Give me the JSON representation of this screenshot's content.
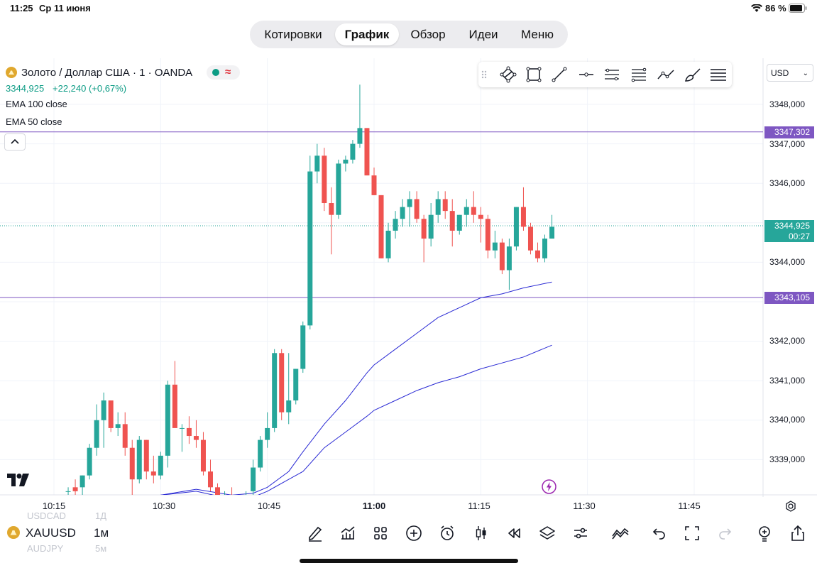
{
  "status_bar": {
    "time": "11:25",
    "date": "Ср 11 июня",
    "battery": "86 %"
  },
  "nav": {
    "tabs": [
      "Котировки",
      "График",
      "Обзор",
      "Идеи",
      "Меню"
    ],
    "active": "График"
  },
  "legend": {
    "symbol_title": "Золото / Доллар США · 1 · OANDA",
    "price": "3344,925",
    "change": "+22,240 (+0,67%)",
    "ema100": "EMA 100 close",
    "ema50": "EMA 50 close"
  },
  "currency_select": "USD",
  "price_axis": {
    "labels": [
      "3348,000",
      "3347,000",
      "3346,000",
      "3344,000",
      "3342,000",
      "3341,000",
      "3340,000",
      "3339,000"
    ],
    "line_upper": "3347,302",
    "line_lower": "3343,105",
    "current_price": "3344,925",
    "countdown": "00:27"
  },
  "time_axis": {
    "labels": [
      "10:15",
      "10:30",
      "10:45",
      "11:00",
      "11:15",
      "11:30",
      "11:45"
    ]
  },
  "bottom_bar": {
    "symbol": "XAUUSD",
    "interval": "1м",
    "ghost_above_symbol": "USDCAD",
    "ghost_above_interval": "1Д",
    "ghost_below_symbol": "AUDJPY",
    "ghost_below_interval": "5м"
  },
  "colors": {
    "up": "#26a69a",
    "down": "#ef5350",
    "line": "#7e57c2",
    "ema": "#2a2ad4",
    "price_tag": "#26a69a"
  },
  "chart_data": {
    "type": "candlestick",
    "title": "Золото / Доллар США · 1 · OANDA",
    "interval": "1",
    "x_labels": [
      "10:15",
      "10:30",
      "10:45",
      "11:00",
      "11:15",
      "11:30",
      "11:45"
    ],
    "ylim": [
      3338.1,
      3348.9
    ],
    "candles": [
      {
        "t": "10:17",
        "o": 3338.2,
        "h": 3338.3,
        "l": 3338.0,
        "c": 3338.2
      },
      {
        "t": "10:18",
        "o": 3338.3,
        "h": 3338.5,
        "l": 3337.9,
        "c": 3338.2
      },
      {
        "t": "10:19",
        "o": 3338.3,
        "h": 3338.6,
        "l": 3338.1,
        "c": 3338.6
      },
      {
        "t": "10:20",
        "o": 3338.6,
        "h": 3339.4,
        "l": 3338.5,
        "c": 3339.3
      },
      {
        "t": "10:21",
        "o": 3339.3,
        "h": 3340.4,
        "l": 3339.1,
        "c": 3340.0
      },
      {
        "t": "10:22",
        "o": 3340.0,
        "h": 3340.7,
        "l": 3339.3,
        "c": 3340.5
      },
      {
        "t": "10:23",
        "o": 3340.5,
        "h": 3340.5,
        "l": 3339.7,
        "c": 3339.8
      },
      {
        "t": "10:24",
        "o": 3339.8,
        "h": 3340.2,
        "l": 3339.6,
        "c": 3339.9
      },
      {
        "t": "10:25",
        "o": 3339.9,
        "h": 3340.2,
        "l": 3339.1,
        "c": 3339.3
      },
      {
        "t": "10:26",
        "o": 3339.3,
        "h": 3339.5,
        "l": 3338.1,
        "c": 3338.5
      },
      {
        "t": "10:27",
        "o": 3338.5,
        "h": 3339.6,
        "l": 3338.4,
        "c": 3339.5
      },
      {
        "t": "10:28",
        "o": 3339.5,
        "h": 3339.5,
        "l": 3338.5,
        "c": 3338.7
      },
      {
        "t": "10:29",
        "o": 3338.7,
        "h": 3339.1,
        "l": 3338.4,
        "c": 3338.6
      },
      {
        "t": "10:30",
        "o": 3338.6,
        "h": 3339.2,
        "l": 3338.5,
        "c": 3339.1
      },
      {
        "t": "10:31",
        "o": 3339.1,
        "h": 3341.0,
        "l": 3338.8,
        "c": 3340.9
      },
      {
        "t": "10:32",
        "o": 3340.9,
        "h": 3341.5,
        "l": 3339.9,
        "c": 3339.8
      },
      {
        "t": "10:33",
        "o": 3339.8,
        "h": 3339.9,
        "l": 3339.2,
        "c": 3339.8
      },
      {
        "t": "10:34",
        "o": 3339.8,
        "h": 3340.1,
        "l": 3339.4,
        "c": 3339.6
      },
      {
        "t": "10:35",
        "o": 3339.6,
        "h": 3340.0,
        "l": 3339.3,
        "c": 3339.5
      },
      {
        "t": "10:36",
        "o": 3339.5,
        "h": 3339.7,
        "l": 3338.6,
        "c": 3338.7
      },
      {
        "t": "10:37",
        "o": 3338.7,
        "h": 3339.0,
        "l": 3338.2,
        "c": 3338.3
      },
      {
        "t": "10:38",
        "o": 3338.3,
        "h": 3338.4,
        "l": 3337.9,
        "c": 3338.1
      },
      {
        "t": "10:39",
        "o": 3338.1,
        "h": 3338.2,
        "l": 3337.9,
        "c": 3338.1
      },
      {
        "t": "10:40",
        "o": 3338.1,
        "h": 3338.3,
        "l": 3337.9,
        "c": 3338.0
      },
      {
        "t": "10:41",
        "o": 3338.0,
        "h": 3338.1,
        "l": 3337.9,
        "c": 3338.0
      },
      {
        "t": "10:42",
        "o": 3338.0,
        "h": 3338.2,
        "l": 3337.9,
        "c": 3338.1
      },
      {
        "t": "10:43",
        "o": 3338.2,
        "h": 3339.0,
        "l": 3338.1,
        "c": 3338.8
      },
      {
        "t": "10:44",
        "o": 3338.8,
        "h": 3339.6,
        "l": 3338.7,
        "c": 3339.5
      },
      {
        "t": "10:45",
        "o": 3339.5,
        "h": 3340.2,
        "l": 3339.3,
        "c": 3339.8
      },
      {
        "t": "10:46",
        "o": 3339.8,
        "h": 3341.8,
        "l": 3339.7,
        "c": 3341.7
      },
      {
        "t": "10:47",
        "o": 3341.7,
        "h": 3341.8,
        "l": 3340.0,
        "c": 3340.2
      },
      {
        "t": "10:48",
        "o": 3340.2,
        "h": 3341.7,
        "l": 3339.9,
        "c": 3340.5
      },
      {
        "t": "10:49",
        "o": 3340.5,
        "h": 3341.3,
        "l": 3340.4,
        "c": 3341.3
      },
      {
        "t": "10:50",
        "o": 3341.3,
        "h": 3342.5,
        "l": 3341.2,
        "c": 3342.4
      },
      {
        "t": "10:51",
        "o": 3342.4,
        "h": 3346.7,
        "l": 3342.3,
        "c": 3346.3
      },
      {
        "t": "10:52",
        "o": 3346.3,
        "h": 3347.0,
        "l": 3346.0,
        "c": 3346.7
      },
      {
        "t": "10:53",
        "o": 3346.7,
        "h": 3346.9,
        "l": 3345.3,
        "c": 3345.5
      },
      {
        "t": "10:54",
        "o": 3345.5,
        "h": 3345.9,
        "l": 3344.2,
        "c": 3345.2
      },
      {
        "t": "10:55",
        "o": 3345.2,
        "h": 3346.6,
        "l": 3345.1,
        "c": 3346.5
      },
      {
        "t": "10:56",
        "o": 3346.5,
        "h": 3346.7,
        "l": 3346.3,
        "c": 3346.6
      },
      {
        "t": "10:57",
        "o": 3346.6,
        "h": 3347.1,
        "l": 3346.5,
        "c": 3347.0
      },
      {
        "t": "10:58",
        "o": 3347.0,
        "h": 3348.5,
        "l": 3346.9,
        "c": 3347.4
      },
      {
        "t": "10:59",
        "o": 3347.4,
        "h": 3347.4,
        "l": 3346.2,
        "c": 3346.2
      },
      {
        "t": "11:00",
        "o": 3346.2,
        "h": 3346.4,
        "l": 3345.7,
        "c": 3345.7
      },
      {
        "t": "11:01",
        "o": 3345.7,
        "h": 3345.7,
        "l": 3344.1,
        "c": 3344.1
      },
      {
        "t": "11:02",
        "o": 3344.1,
        "h": 3345.0,
        "l": 3344.0,
        "c": 3344.8
      },
      {
        "t": "11:03",
        "o": 3344.8,
        "h": 3345.3,
        "l": 3344.6,
        "c": 3345.1
      },
      {
        "t": "11:04",
        "o": 3345.1,
        "h": 3345.6,
        "l": 3344.9,
        "c": 3345.4
      },
      {
        "t": "11:05",
        "o": 3345.4,
        "h": 3345.8,
        "l": 3344.9,
        "c": 3345.6
      },
      {
        "t": "11:06",
        "o": 3345.6,
        "h": 3345.8,
        "l": 3345.0,
        "c": 3345.1
      },
      {
        "t": "11:07",
        "o": 3345.1,
        "h": 3345.2,
        "l": 3344.0,
        "c": 3344.6
      },
      {
        "t": "11:08",
        "o": 3344.6,
        "h": 3345.5,
        "l": 3344.4,
        "c": 3345.2
      },
      {
        "t": "11:09",
        "o": 3345.2,
        "h": 3345.8,
        "l": 3345.0,
        "c": 3345.6
      },
      {
        "t": "11:10",
        "o": 3345.6,
        "h": 3345.8,
        "l": 3345.1,
        "c": 3345.3
      },
      {
        "t": "11:11",
        "o": 3345.3,
        "h": 3345.6,
        "l": 3344.4,
        "c": 3344.8
      },
      {
        "t": "11:12",
        "o": 3344.8,
        "h": 3345.2,
        "l": 3344.7,
        "c": 3345.2
      },
      {
        "t": "11:13",
        "o": 3345.2,
        "h": 3345.6,
        "l": 3344.9,
        "c": 3345.4
      },
      {
        "t": "11:14",
        "o": 3345.4,
        "h": 3345.8,
        "l": 3345.0,
        "c": 3345.2
      },
      {
        "t": "11:15",
        "o": 3345.2,
        "h": 3345.4,
        "l": 3344.5,
        "c": 3345.1
      },
      {
        "t": "11:16",
        "o": 3345.1,
        "h": 3345.2,
        "l": 3344.1,
        "c": 3344.3
      },
      {
        "t": "11:17",
        "o": 3344.3,
        "h": 3344.8,
        "l": 3344.1,
        "c": 3344.5
      },
      {
        "t": "11:18",
        "o": 3344.5,
        "h": 3344.6,
        "l": 3343.7,
        "c": 3343.8
      },
      {
        "t": "11:19",
        "o": 3343.8,
        "h": 3344.6,
        "l": 3343.3,
        "c": 3344.4
      },
      {
        "t": "11:20",
        "o": 3344.4,
        "h": 3345.4,
        "l": 3344.3,
        "c": 3345.4
      },
      {
        "t": "11:21",
        "o": 3345.4,
        "h": 3345.9,
        "l": 3344.8,
        "c": 3344.9
      },
      {
        "t": "11:22",
        "o": 3344.9,
        "h": 3345.0,
        "l": 3344.2,
        "c": 3344.3
      },
      {
        "t": "11:23",
        "o": 3344.3,
        "h": 3344.5,
        "l": 3344.0,
        "c": 3344.1
      },
      {
        "t": "11:24",
        "o": 3344.1,
        "h": 3344.7,
        "l": 3344.0,
        "c": 3344.6
      },
      {
        "t": "11:25",
        "o": 3344.6,
        "h": 3345.2,
        "l": 3344.6,
        "c": 3344.9
      }
    ],
    "ema100": [
      {
        "t": "10:30",
        "v": 3338.1
      },
      {
        "t": "10:35",
        "v": 3338.25
      },
      {
        "t": "10:40",
        "v": 3338.1
      },
      {
        "t": "10:43",
        "v": 3338.15
      },
      {
        "t": "10:45",
        "v": 3338.3
      },
      {
        "t": "10:48",
        "v": 3338.7
      },
      {
        "t": "10:50",
        "v": 3339.2
      },
      {
        "t": "10:53",
        "v": 3339.9
      },
      {
        "t": "10:56",
        "v": 3340.5
      },
      {
        "t": "10:59",
        "v": 3341.2
      },
      {
        "t": "11:00",
        "v": 3341.4
      },
      {
        "t": "11:03",
        "v": 3341.8
      },
      {
        "t": "11:06",
        "v": 3342.2
      },
      {
        "t": "11:09",
        "v": 3342.6
      },
      {
        "t": "11:12",
        "v": 3342.85
      },
      {
        "t": "11:15",
        "v": 3343.1
      },
      {
        "t": "11:18",
        "v": 3343.2
      },
      {
        "t": "11:21",
        "v": 3343.35
      },
      {
        "t": "11:25",
        "v": 3343.5
      }
    ],
    "ema50": [
      {
        "t": "10:30",
        "v": 3338.1
      },
      {
        "t": "10:35",
        "v": 3338.2
      },
      {
        "t": "10:40",
        "v": 3338.0
      },
      {
        "t": "10:43",
        "v": 3338.05
      },
      {
        "t": "10:45",
        "v": 3338.2
      },
      {
        "t": "10:48",
        "v": 3338.5
      },
      {
        "t": "10:50",
        "v": 3338.7
      },
      {
        "t": "10:53",
        "v": 3339.3
      },
      {
        "t": "10:56",
        "v": 3339.7
      },
      {
        "t": "10:59",
        "v": 3340.1
      },
      {
        "t": "11:00",
        "v": 3340.25
      },
      {
        "t": "11:03",
        "v": 3340.5
      },
      {
        "t": "11:06",
        "v": 3340.75
      },
      {
        "t": "11:09",
        "v": 3340.95
      },
      {
        "t": "11:12",
        "v": 3341.1
      },
      {
        "t": "11:15",
        "v": 3341.3
      },
      {
        "t": "11:18",
        "v": 3341.45
      },
      {
        "t": "11:21",
        "v": 3341.6
      },
      {
        "t": "11:25",
        "v": 3341.9
      }
    ],
    "horizontal_lines": [
      3347.302,
      3343.105
    ],
    "last_price": 3344.925
  }
}
